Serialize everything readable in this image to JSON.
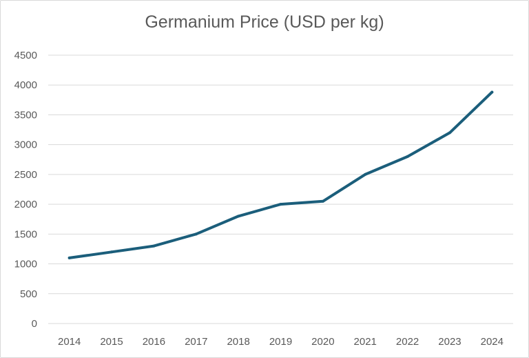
{
  "chart_data": {
    "type": "line",
    "title": "Germanium Price (USD per kg)",
    "xlabel": "",
    "ylabel": "",
    "categories": [
      "2014",
      "2015",
      "2016",
      "2017",
      "2018",
      "2019",
      "2020",
      "2021",
      "2022",
      "2023",
      "2024"
    ],
    "series": [
      {
        "values": [
          1100,
          1200,
          1300,
          1500,
          1800,
          2000,
          2050,
          2500,
          2800,
          3200,
          3880
        ],
        "color": "#1b5e7b"
      }
    ],
    "ylim": [
      0,
      4500
    ],
    "yticks": [
      0,
      500,
      1000,
      1500,
      2000,
      2500,
      3000,
      3500,
      4000,
      4500
    ],
    "grid": true,
    "legend": "none"
  }
}
